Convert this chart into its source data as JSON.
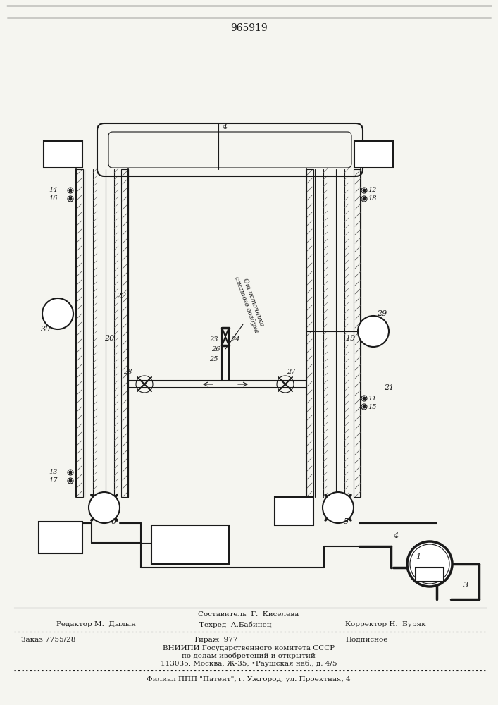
{
  "patent_number": "965919",
  "bg_color": "#f5f5f0",
  "line_color": "#1a1a1a",
  "hatch_color": "#1a1a1a",
  "footer_lines": [
    {
      "left": "Редактор М.  Дылын",
      "center": "Техред  А.Бабинец",
      "right": "КорректорН.  Буряк"
    },
    {
      "center": "Составитель  Г.  Киселева"
    }
  ],
  "footer_block": [
    "Заказ 7755/28        Тираж  977             Подписное",
    "            ВНИИПИ Государственного комитета СССР",
    "             по делам изобретений и открытий",
    "      113035, Москва, Ж-35, •Раушская наб., д. 4/5"
  ],
  "footer_last": "Филиал ППП \"Патент\", г. Ужгород, ул. Проектная, 4"
}
